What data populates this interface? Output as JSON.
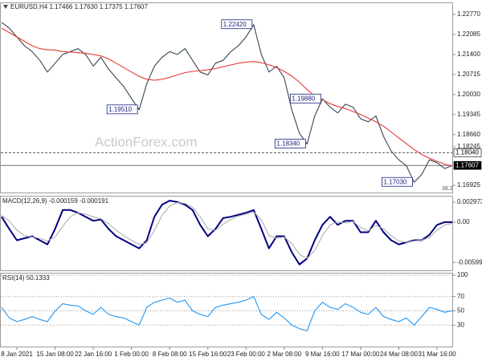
{
  "chart_data": [
    {
      "type": "line",
      "title": "EURUSD,H4  1.17466 1.17630 1.17375 1.17607",
      "watermark": "ActionForex.com",
      "fib_label": "38.2",
      "categories": [
        null,
        null,
        "8 Jan 2021",
        null,
        null,
        null,
        null,
        "15 Jan 08:00",
        null,
        null,
        null,
        null,
        "22 Jan 16:00",
        null,
        null,
        null,
        null,
        "1 Feb 00:00",
        null,
        null,
        null,
        null,
        "8 Feb 08:00",
        null,
        null,
        null,
        null,
        "15 Feb 16:00",
        null,
        null,
        null,
        null,
        "23 Feb 00:00",
        null,
        null,
        null,
        null,
        "2 Mar 08:00",
        null,
        null,
        null,
        null,
        "9 Mar 16:00",
        null,
        null,
        null,
        null,
        "17 Mar 00:00",
        null,
        null,
        null,
        null,
        "24 Mar 08:00",
        null,
        null,
        null,
        null,
        "31 Mar 16:00",
        null,
        null
      ],
      "series": [
        {
          "color": "#37474f",
          "values": [
            1.225,
            1.223,
            1.22,
            1.217,
            1.215,
            1.212,
            1.208,
            1.211,
            1.214,
            1.215,
            1.216,
            1.214,
            1.21,
            1.213,
            1.209,
            1.206,
            1.203,
            1.199,
            1.1951,
            1.204,
            1.21,
            1.213,
            1.215,
            1.214,
            1.216,
            1.212,
            1.208,
            1.207,
            1.211,
            1.212,
            1.215,
            1.217,
            1.22,
            1.2242,
            1.214,
            1.208,
            1.21,
            1.206,
            1.195,
            1.187,
            1.1834,
            1.193,
            1.1988,
            1.196,
            1.194,
            1.197,
            1.196,
            1.192,
            1.191,
            1.193,
            1.186,
            1.181,
            1.178,
            1.176,
            1.1703,
            1.173,
            1.178,
            1.177,
            1.175,
            1.17607
          ]
        },
        {
          "color": "#e53935",
          "values": [
            1.223,
            1.2215,
            1.22,
            1.2185,
            1.217,
            1.216,
            1.2156,
            1.2155,
            1.215,
            1.2148,
            1.2146,
            1.2144,
            1.214,
            1.2135,
            1.2125,
            1.211,
            1.2095,
            1.208,
            1.2065,
            1.2055,
            1.2052,
            1.2055,
            1.2062,
            1.207,
            1.2078,
            1.2082,
            1.2085,
            1.2088,
            1.2092,
            1.2098,
            1.2104,
            1.211,
            1.2114,
            1.2116,
            1.2112,
            1.2105,
            1.2095,
            1.2082,
            1.2066,
            1.2045,
            1.202,
            1.1998,
            1.1985,
            1.1972,
            1.1962,
            1.1955,
            1.1945,
            1.1935,
            1.1922,
            1.191,
            1.1895,
            1.1875,
            1.1855,
            1.1835,
            1.1815,
            1.1798,
            1.1785,
            1.1775,
            1.1765,
            1.1759
          ]
        }
      ],
      "annotations": [
        {
          "text": "1.22420",
          "value": 1.2242
        },
        {
          "text": "1.19510",
          "value": 1.1951
        },
        {
          "text": "1.18340",
          "value": 1.1834
        },
        {
          "text": "1.19880",
          "value": 1.1988
        },
        {
          "text": "1.17030",
          "value": 1.1703
        }
      ],
      "levels": [
        {
          "value": 1.1804,
          "label": "1.18040",
          "style": "dashed"
        },
        {
          "value": 1.17607,
          "label": "1.17607",
          "style": "solid"
        }
      ],
      "ylim": [
        1.1668,
        1.2318
      ],
      "yticks": [
        {
          "value": 1.2277,
          "label": "1.22770"
        },
        1.22085,
        {
          "value": 1.214,
          "label": "1.21400"
        },
        1.20715,
        {
          "value": 1.2003,
          "label": "1.20030"
        },
        1.19345,
        {
          "value": 1.1866,
          "label": "1.18660"
        },
        1.18245,
        1.16925
      ]
    },
    {
      "type": "line",
      "title": "MACD(12,26,9) -0.000159 -0.000191",
      "series": [
        {
          "color": "#000080",
          "values": [
            0.0008,
            -0.001,
            -0.0027,
            -0.0024,
            -0.0021,
            -0.0027,
            -0.0033,
            -0.001,
            0.0018,
            0.0018,
            0.0014,
            0.0008,
            0.0002,
            0.0004,
            -0.001,
            -0.0021,
            -0.0027,
            -0.0033,
            -0.0039,
            -0.0027,
            0.0008,
            0.0026,
            0.0032,
            0.003,
            0.0026,
            0.0018,
            -0.0004,
            -0.0021,
            -0.001,
            0.0006,
            0.0008,
            0.0011,
            0.0014,
            0.0018,
            -0.001,
            -0.0039,
            -0.0021,
            -0.0021,
            -0.0045,
            -0.0063,
            -0.0054,
            -0.0027,
            -0.0004,
            0.0008,
            -0.0004,
            0.0002,
            0.0002,
            -0.0015,
            -0.0015,
            0.0002,
            -0.0015,
            -0.0027,
            -0.0033,
            -0.003,
            -0.0027,
            -0.0027,
            -0.0019,
            -0.0004,
            0.0,
            0.0
          ]
        },
        {
          "color": "#b0b0b0",
          "values": [
            0.001,
            0.0002,
            -0.0012,
            -0.002,
            -0.0022,
            -0.0024,
            -0.0028,
            -0.0022,
            -0.0006,
            0.0008,
            0.0014,
            0.0012,
            0.0008,
            0.0005,
            -0.0002,
            -0.0012,
            -0.002,
            -0.0027,
            -0.0033,
            -0.0031,
            -0.0012,
            0.001,
            0.0024,
            0.0029,
            0.0028,
            0.0022,
            0.0008,
            -0.001,
            -0.0012,
            -0.0003,
            0.0004,
            0.0009,
            0.0012,
            0.0015,
            0.0004,
            -0.002,
            -0.0024,
            -0.0022,
            -0.0032,
            -0.0048,
            -0.0054,
            -0.0042,
            -0.002,
            -0.0004,
            0.0,
            -0.0001,
            0.0001,
            -0.0008,
            -0.0013,
            -0.0005,
            -0.001,
            -0.002,
            -0.0028,
            -0.003,
            -0.0028,
            -0.0027,
            -0.0023,
            -0.0012,
            -0.0004,
            -0.0002
          ]
        }
      ],
      "ylim": [
        -0.00717,
        0.00381
      ],
      "yticks": [
        0.002973,
        {
          "value": 0,
          "label": "0.00"
        },
        -0.005996
      ]
    },
    {
      "type": "line",
      "title": "RSI(14) 50.1333",
      "series": [
        {
          "color": "#2196f3",
          "values": [
            55,
            40,
            35,
            38,
            42,
            38,
            35,
            50,
            60,
            58,
            57,
            50,
            45,
            55,
            45,
            42,
            40,
            35,
            30,
            55,
            62,
            65,
            68,
            62,
            65,
            50,
            45,
            42,
            55,
            58,
            60,
            62,
            65,
            70,
            45,
            38,
            48,
            40,
            30,
            25,
            22,
            50,
            62,
            55,
            52,
            60,
            55,
            48,
            45,
            55,
            42,
            38,
            35,
            40,
            30,
            42,
            55,
            52,
            48,
            50.1333
          ]
        }
      ],
      "ylim": [
        0,
        100
      ],
      "yticks": [
        100,
        70,
        50,
        30
      ],
      "grid": true
    }
  ]
}
